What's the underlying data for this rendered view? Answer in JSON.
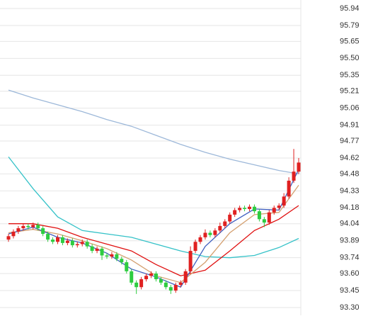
{
  "chart_data": {
    "type": "candlestick",
    "open": [
      93.9,
      93.93,
      93.97,
      94.0,
      94.02,
      94.01,
      94.03,
      94.0,
      93.95,
      93.9,
      93.88,
      93.92,
      93.87,
      93.89,
      93.85,
      93.86,
      93.88,
      93.84,
      93.8,
      93.82,
      93.76,
      93.75,
      93.77,
      93.73,
      93.7,
      93.62,
      93.52,
      93.48,
      93.55,
      93.58,
      93.6,
      93.55,
      93.52,
      93.48,
      93.45,
      93.5,
      93.52,
      93.62,
      93.8,
      93.88,
      93.92,
      93.96,
      93.94,
      93.98,
      94.02,
      94.06,
      94.12,
      94.16,
      94.18,
      94.17,
      94.19,
      94.15,
      94.08,
      94.05,
      94.14,
      94.18,
      94.2,
      94.28,
      94.42,
      94.5
    ],
    "high": [
      93.95,
      93.99,
      94.02,
      94.04,
      94.04,
      94.05,
      94.05,
      94.02,
      93.97,
      93.92,
      93.94,
      93.94,
      93.91,
      93.91,
      93.88,
      93.9,
      93.9,
      93.86,
      93.84,
      93.84,
      93.78,
      93.79,
      93.79,
      93.75,
      93.72,
      93.64,
      93.54,
      93.57,
      93.6,
      93.62,
      93.62,
      93.57,
      93.54,
      93.5,
      93.52,
      93.54,
      93.64,
      93.84,
      93.9,
      93.94,
      93.99,
      93.98,
      94.0,
      94.05,
      94.08,
      94.14,
      94.18,
      94.2,
      94.2,
      94.21,
      94.21,
      94.17,
      94.1,
      94.16,
      94.2,
      94.22,
      94.31,
      94.45,
      94.7,
      94.62
    ],
    "low": [
      93.88,
      93.91,
      93.95,
      93.98,
      93.99,
      93.99,
      93.98,
      93.93,
      93.88,
      93.86,
      93.86,
      93.85,
      93.85,
      93.83,
      93.83,
      93.84,
      93.82,
      93.78,
      93.78,
      93.72,
      93.73,
      93.73,
      93.71,
      93.68,
      93.6,
      93.5,
      93.42,
      93.46,
      93.53,
      93.56,
      93.53,
      93.5,
      93.46,
      93.42,
      93.43,
      93.48,
      93.5,
      93.6,
      93.78,
      93.86,
      93.9,
      93.92,
      93.92,
      93.96,
      94.0,
      94.04,
      94.1,
      94.14,
      94.15,
      94.15,
      94.13,
      94.06,
      94.01,
      94.03,
      94.12,
      94.16,
      94.18,
      94.26,
      94.4,
      94.48
    ],
    "close": [
      93.93,
      93.97,
      94.0,
      94.02,
      94.01,
      94.03,
      94.0,
      93.95,
      93.9,
      93.88,
      93.92,
      93.87,
      93.89,
      93.85,
      93.86,
      93.88,
      93.84,
      93.8,
      93.82,
      93.76,
      93.75,
      93.77,
      93.73,
      93.7,
      93.62,
      93.52,
      93.48,
      93.55,
      93.58,
      93.6,
      93.55,
      93.52,
      93.48,
      93.45,
      93.5,
      93.52,
      93.62,
      93.8,
      93.88,
      93.92,
      93.96,
      93.94,
      93.98,
      94.02,
      94.06,
      94.12,
      94.16,
      94.18,
      94.17,
      94.19,
      94.15,
      94.08,
      94.05,
      94.14,
      94.18,
      94.2,
      94.28,
      94.42,
      94.5,
      94.58
    ],
    "up_color": "#e02020",
    "down_color": "#2ecc40",
    "lines": [
      {
        "color": "#9db8d9",
        "x": [
          0,
          5,
          10,
          15,
          20,
          25,
          30,
          35,
          40,
          45,
          50,
          55,
          59
        ],
        "values": [
          95.22,
          95.15,
          95.09,
          95.03,
          94.96,
          94.9,
          94.82,
          94.74,
          94.67,
          94.61,
          94.56,
          94.51,
          94.48
        ]
      },
      {
        "color": "#35c2c8",
        "x": [
          0,
          5,
          10,
          15,
          20,
          25,
          30,
          35,
          40,
          45,
          50,
          55,
          59
        ],
        "values": [
          94.63,
          94.35,
          94.1,
          93.98,
          93.95,
          93.92,
          93.86,
          93.8,
          93.75,
          93.74,
          93.76,
          93.83,
          93.91
        ]
      },
      {
        "color": "#e01010",
        "x": [
          0,
          5,
          10,
          15,
          20,
          25,
          30,
          35,
          40,
          45,
          50,
          55,
          59
        ],
        "values": [
          94.04,
          94.04,
          94.0,
          93.92,
          93.86,
          93.8,
          93.68,
          93.58,
          93.63,
          93.8,
          93.98,
          94.08,
          94.2
        ]
      },
      {
        "color": "#d4a070",
        "x": [
          0,
          5,
          10,
          15,
          20,
          25,
          30,
          35,
          40,
          45,
          50,
          55,
          59
        ],
        "values": [
          93.96,
          93.99,
          93.95,
          93.89,
          93.82,
          93.72,
          93.58,
          93.52,
          93.7,
          93.96,
          94.12,
          94.14,
          94.38
        ]
      },
      {
        "color": "#4060c0",
        "x": [
          0,
          5,
          10,
          15,
          20,
          25,
          30,
          35,
          40,
          45,
          50,
          55,
          59
        ],
        "values": [
          93.95,
          94.01,
          93.92,
          93.87,
          93.78,
          93.64,
          93.57,
          93.48,
          93.84,
          94.04,
          94.17,
          94.16,
          94.52
        ]
      }
    ],
    "ylim": [
      93.3,
      95.94
    ],
    "yticks": [
      95.94,
      95.79,
      95.65,
      {
        "value": 95.5,
        "label": "95.50"
      },
      95.35,
      95.21,
      95.06,
      94.91,
      94.77,
      94.62,
      94.48,
      94.33,
      94.18,
      94.04,
      93.89,
      93.74,
      {
        "value": 93.6,
        "label": "93.60"
      },
      93.45,
      {
        "value": 93.3,
        "label": "93.30"
      }
    ],
    "grid": true
  }
}
